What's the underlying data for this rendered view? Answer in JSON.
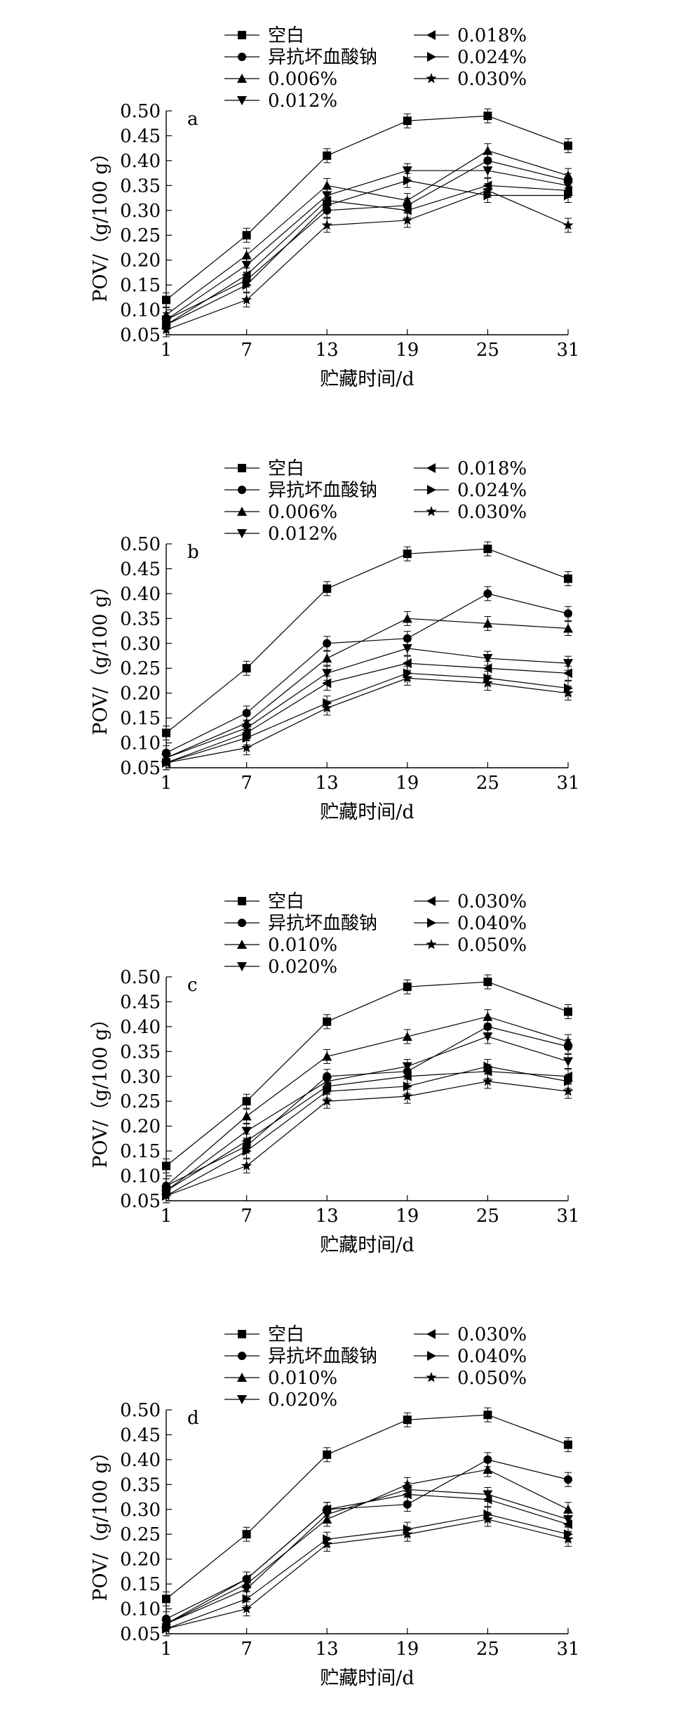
{
  "chart_data": [
    {
      "type": "line",
      "panel_label": "a",
      "xlabel": "贮藏时间/d",
      "ylabel": "POV/（g/100 g）",
      "x": [
        1,
        7,
        13,
        19,
        25,
        31
      ],
      "xticks": [
        "1",
        "7",
        "13",
        "19",
        "25",
        "31"
      ],
      "ylim": [
        0.05,
        0.5
      ],
      "yticks": [
        "0.05",
        "0.10",
        "0.15",
        "0.20",
        "0.25",
        "0.30",
        "0.35",
        "0.40",
        "0.45",
        "0.50"
      ],
      "legend_position": "top",
      "series": [
        {
          "name": "空白",
          "marker": "square",
          "values": [
            0.12,
            0.25,
            0.41,
            0.48,
            0.49,
            0.43
          ]
        },
        {
          "name": "异抗坏血酸钠",
          "marker": "circle",
          "values": [
            0.08,
            0.16,
            0.3,
            0.31,
            0.4,
            0.36
          ]
        },
        {
          "name": "0.006%",
          "marker": "triangle-up",
          "values": [
            0.09,
            0.21,
            0.35,
            0.32,
            0.42,
            0.37
          ]
        },
        {
          "name": "0.012%",
          "marker": "triangle-down",
          "values": [
            0.08,
            0.19,
            0.33,
            0.38,
            0.38,
            0.35
          ]
        },
        {
          "name": "0.018%",
          "marker": "triangle-left",
          "values": [
            0.07,
            0.17,
            0.32,
            0.3,
            0.35,
            0.34
          ]
        },
        {
          "name": "0.024%",
          "marker": "triangle-right",
          "values": [
            0.07,
            0.15,
            0.31,
            0.36,
            0.33,
            0.33
          ]
        },
        {
          "name": "0.030%",
          "marker": "star",
          "values": [
            0.06,
            0.12,
            0.27,
            0.28,
            0.34,
            0.27
          ]
        }
      ]
    },
    {
      "type": "line",
      "panel_label": "b",
      "xlabel": "贮藏时间/d",
      "ylabel": "POV/（g/100 g）",
      "x": [
        1,
        7,
        13,
        19,
        25,
        31
      ],
      "xticks": [
        "1",
        "7",
        "13",
        "19",
        "25",
        "31"
      ],
      "ylim": [
        0.05,
        0.5
      ],
      "yticks": [
        "0.05",
        "0.10",
        "0.15",
        "0.20",
        "0.25",
        "0.30",
        "0.35",
        "0.40",
        "0.45",
        "0.50"
      ],
      "legend_position": "top",
      "series": [
        {
          "name": "空白",
          "marker": "square",
          "values": [
            0.12,
            0.25,
            0.41,
            0.48,
            0.49,
            0.43
          ]
        },
        {
          "name": "异抗坏血酸钠",
          "marker": "circle",
          "values": [
            0.08,
            0.16,
            0.3,
            0.31,
            0.4,
            0.36
          ]
        },
        {
          "name": "0.006%",
          "marker": "triangle-up",
          "values": [
            0.07,
            0.14,
            0.27,
            0.35,
            0.34,
            0.33
          ]
        },
        {
          "name": "0.012%",
          "marker": "triangle-down",
          "values": [
            0.07,
            0.13,
            0.24,
            0.29,
            0.27,
            0.26
          ]
        },
        {
          "name": "0.018%",
          "marker": "triangle-left",
          "values": [
            0.06,
            0.12,
            0.22,
            0.26,
            0.25,
            0.24
          ]
        },
        {
          "name": "0.024%",
          "marker": "triangle-right",
          "values": [
            0.06,
            0.11,
            0.18,
            0.24,
            0.23,
            0.21
          ]
        },
        {
          "name": "0.030%",
          "marker": "star",
          "values": [
            0.06,
            0.09,
            0.17,
            0.23,
            0.22,
            0.2
          ]
        }
      ]
    },
    {
      "type": "line",
      "panel_label": "c",
      "xlabel": "贮藏时间/d",
      "ylabel": "POV/（g/100 g）",
      "x": [
        1,
        7,
        13,
        19,
        25,
        31
      ],
      "xticks": [
        "1",
        "7",
        "13",
        "19",
        "25",
        "31"
      ],
      "ylim": [
        0.05,
        0.5
      ],
      "yticks": [
        "0.05",
        "0.10",
        "0.15",
        "0.20",
        "0.25",
        "0.30",
        "0.35",
        "0.40",
        "0.45",
        "0.50"
      ],
      "legend_position": "top",
      "series": [
        {
          "name": "空白",
          "marker": "square",
          "values": [
            0.12,
            0.25,
            0.41,
            0.48,
            0.49,
            0.43
          ]
        },
        {
          "name": "异抗坏血酸钠",
          "marker": "circle",
          "values": [
            0.08,
            0.16,
            0.3,
            0.31,
            0.4,
            0.36
          ]
        },
        {
          "name": "0.010%",
          "marker": "triangle-up",
          "values": [
            0.08,
            0.22,
            0.34,
            0.38,
            0.42,
            0.37
          ]
        },
        {
          "name": "0.020%",
          "marker": "triangle-down",
          "values": [
            0.07,
            0.19,
            0.29,
            0.32,
            0.38,
            0.33
          ]
        },
        {
          "name": "0.030%",
          "marker": "triangle-left",
          "values": [
            0.07,
            0.17,
            0.28,
            0.3,
            0.31,
            0.3
          ]
        },
        {
          "name": "0.040%",
          "marker": "triangle-right",
          "values": [
            0.06,
            0.15,
            0.27,
            0.28,
            0.32,
            0.29
          ]
        },
        {
          "name": "0.050%",
          "marker": "star",
          "values": [
            0.06,
            0.12,
            0.25,
            0.26,
            0.29,
            0.27
          ]
        }
      ]
    },
    {
      "type": "line",
      "panel_label": "d",
      "xlabel": "贮藏时间/d",
      "ylabel": "POV/（g/100 g）",
      "x": [
        1,
        7,
        13,
        19,
        25,
        31
      ],
      "xticks": [
        "1",
        "7",
        "13",
        "19",
        "25",
        "31"
      ],
      "ylim": [
        0.05,
        0.5
      ],
      "yticks": [
        "0.05",
        "0.10",
        "0.15",
        "0.20",
        "0.25",
        "0.30",
        "0.35",
        "0.40",
        "0.45",
        "0.50"
      ],
      "legend_position": "top",
      "series": [
        {
          "name": "空白",
          "marker": "square",
          "values": [
            0.12,
            0.25,
            0.41,
            0.48,
            0.49,
            0.43
          ]
        },
        {
          "name": "异抗坏血酸钠",
          "marker": "circle",
          "values": [
            0.08,
            0.16,
            0.3,
            0.31,
            0.4,
            0.36
          ]
        },
        {
          "name": "0.010%",
          "marker": "triangle-up",
          "values": [
            0.07,
            0.15,
            0.28,
            0.35,
            0.38,
            0.3
          ]
        },
        {
          "name": "0.020%",
          "marker": "triangle-down",
          "values": [
            0.07,
            0.14,
            0.29,
            0.34,
            0.33,
            0.28
          ]
        },
        {
          "name": "0.030%",
          "marker": "triangle-left",
          "values": [
            0.07,
            0.16,
            0.3,
            0.33,
            0.32,
            0.27
          ]
        },
        {
          "name": "0.040%",
          "marker": "triangle-right",
          "values": [
            0.06,
            0.12,
            0.24,
            0.26,
            0.29,
            0.25
          ]
        },
        {
          "name": "0.050%",
          "marker": "star",
          "values": [
            0.06,
            0.1,
            0.23,
            0.25,
            0.28,
            0.24
          ]
        }
      ]
    }
  ]
}
